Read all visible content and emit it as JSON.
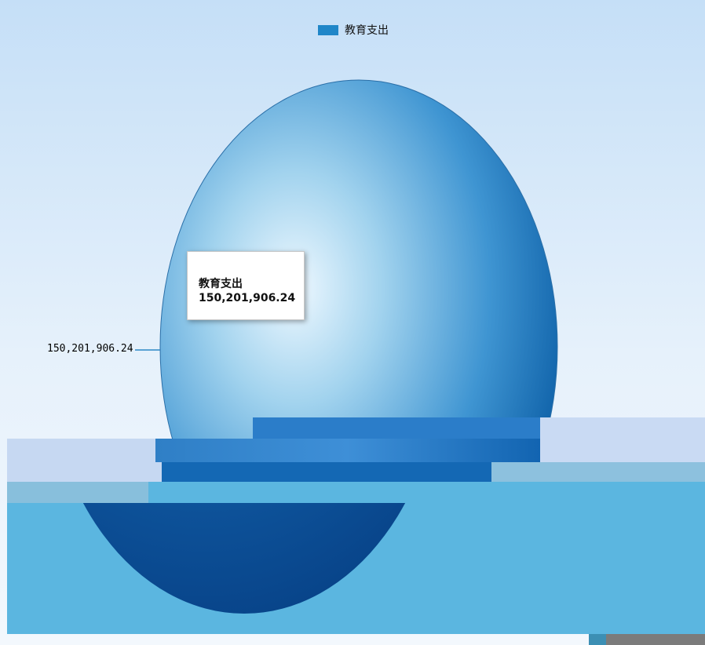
{
  "chart_data": {
    "type": "pie",
    "series": [
      {
        "name": "教育支出",
        "values": [
          150201906.24
        ]
      }
    ],
    "categories": [
      "教育支出"
    ],
    "data_labels": [
      "150,201,906.24"
    ],
    "legend": "top-center",
    "tooltip": {
      "title": "教育支出",
      "value": "150,201,906.24"
    }
  },
  "colors": {
    "slice": "#1f86c8",
    "slice_light": "#e8f6ff",
    "slice_dark": "#0a4f96",
    "background_top": "#c8e0f7",
    "background_mid": "#f2f8fd",
    "band_light": "#c7daf4",
    "band_teal": "#8cc0de",
    "band_sky": "#5cb6e0",
    "corner_gray": "#7b7b7b",
    "corner_teal": "#3c8fb4"
  }
}
